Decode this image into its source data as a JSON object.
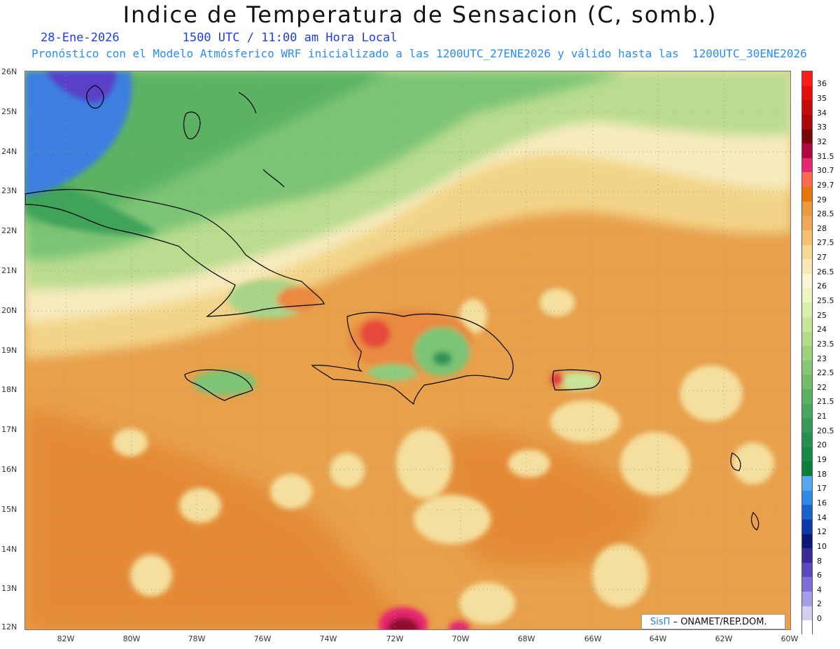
{
  "header": {
    "title": "Indice de Temperatura de Sensacion (C, somb.)",
    "date": "28-Ene-2026",
    "time": "1500 UTC / 11:00 am Hora Local",
    "subtitle": "Pronóstico con el Modelo Atmósferico WRF inicializado a las 1200UTC_27ENE2026 y válido hasta las  1200UTC_30ENE2026"
  },
  "map": {
    "lat_labels": [
      "26N",
      "25N",
      "24N",
      "23N",
      "22N",
      "21N",
      "20N",
      "19N",
      "18N",
      "17N",
      "16N",
      "15N",
      "14N",
      "13N",
      "12N"
    ],
    "lon_labels": [
      "82W",
      "80W",
      "78W",
      "76W",
      "74W",
      "72W",
      "70W",
      "68W",
      "66W",
      "64W",
      "62W",
      "60W"
    ],
    "colors": {
      "sea_warm": "#e8a04a",
      "sea_warmer": "#e48a35",
      "light": "#f3dc9a",
      "cream": "#f7efc2",
      "green_light": "#b9dc8e",
      "green": "#7cc474",
      "green_dark": "#3fa35a",
      "blue": "#3c7fe0",
      "purple": "#5a3fc8",
      "red": "#e23c3c",
      "dark_red": "#8f0f2a"
    }
  },
  "legend": {
    "labels": [
      "36",
      "35",
      "34",
      "33",
      "32",
      "31.5",
      "30.7",
      "29.7",
      "29",
      "28.5",
      "28",
      "27.5",
      "27",
      "26.5",
      "26",
      "25.5",
      "25",
      "24",
      "23.5",
      "23",
      "22.5",
      "22",
      "21.5",
      "21",
      "20.5",
      "20",
      "19",
      "18",
      "17",
      "16",
      "14",
      "12",
      "10",
      "8",
      "6",
      "4",
      "2",
      "0"
    ],
    "colors": [
      "#ff1a1a",
      "#e60d0d",
      "#c80a0a",
      "#a80808",
      "#7a0606",
      "#b0083f",
      "#e6286e",
      "#ff6a50",
      "#e5760a",
      "#ec9a40",
      "#f0a858",
      "#f5c070",
      "#f7d892",
      "#f9e8b4",
      "#fbf6d6",
      "#eef5c0",
      "#dcefaa",
      "#c8e69a",
      "#b2dc8c",
      "#9ed27e",
      "#88c874",
      "#72bd6a",
      "#5cb264",
      "#48a65e",
      "#369a58",
      "#25904f",
      "#158a44",
      "#0a7f3a",
      "#55a8f0",
      "#2d8ae6",
      "#1862cc",
      "#0c3aa8",
      "#0a1a78",
      "#3a2a9a",
      "#5c4ac0",
      "#7c6ed6",
      "#a49ee6",
      "#d2d0f0"
    ]
  },
  "credit": {
    "brand": "SisΠ",
    "text": "– ONAMET/REP.DOM."
  }
}
